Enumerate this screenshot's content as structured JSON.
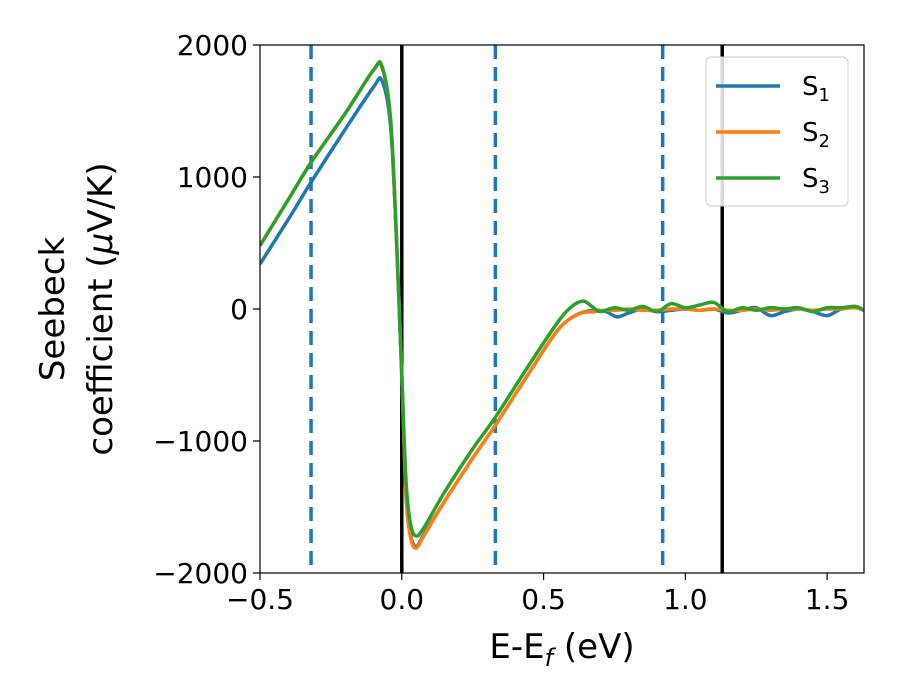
{
  "chart_data": {
    "type": "line",
    "xlabel": "E-E",
    "xlabel_sub": "f",
    "xlabel_unit": " (eV)",
    "ylabel_line1": "Seebeck",
    "ylabel_line2": "coefficient  (",
    "ylabel_mu": "μ",
    "ylabel_unit": "V/K)",
    "xlim": [
      -0.5,
      1.63
    ],
    "ylim": [
      -2000,
      2000
    ],
    "xticks": [
      -0.5,
      0.0,
      0.5,
      1.0,
      1.5
    ],
    "xtick_labels": [
      "−0.5",
      "0.0",
      "0.5",
      "1.0",
      "1.5"
    ],
    "yticks": [
      -2000,
      -1000,
      0,
      1000,
      2000
    ],
    "ytick_labels": [
      "−2000",
      "−1000",
      "0",
      "1000",
      "2000"
    ],
    "grid": false,
    "legend_position": "top-right",
    "vlines_solid": [
      0.0,
      1.13
    ],
    "vlines_dashed": [
      -0.32,
      0.33,
      0.92
    ],
    "colors": {
      "S1": "#1f77b4",
      "S2": "#ff7f0e",
      "S3": "#2ca02c",
      "solid_line": "#000000",
      "dashed_line": "#1f77b4"
    },
    "series": [
      {
        "name": "S",
        "sub": "1",
        "key": "S1",
        "x": [
          -0.5,
          -0.4,
          -0.32,
          -0.2,
          -0.1,
          -0.07,
          -0.04,
          -0.02,
          0.0,
          0.015,
          0.03,
          0.05,
          0.08,
          0.15,
          0.25,
          0.33,
          0.45,
          0.55,
          0.62,
          0.68,
          0.72,
          0.76,
          0.8,
          0.85,
          0.9,
          0.95,
          1.0,
          1.05,
          1.1,
          1.15,
          1.2,
          1.25,
          1.3,
          1.35,
          1.4,
          1.45,
          1.5,
          1.55,
          1.6,
          1.63
        ],
        "y": [
          340,
          680,
          960,
          1360,
          1680,
          1730,
          1400,
          600,
          -500,
          -1400,
          -1700,
          -1800,
          -1700,
          -1460,
          -1130,
          -880,
          -480,
          -160,
          -40,
          -10,
          -20,
          -60,
          -30,
          0,
          -20,
          -10,
          0,
          -10,
          0,
          -30,
          -10,
          10,
          -50,
          -20,
          0,
          -20,
          -50,
          0,
          10,
          -10
        ]
      },
      {
        "name": "S",
        "sub": "2",
        "key": "S2",
        "x": [
          -0.5,
          -0.4,
          -0.32,
          -0.2,
          -0.1,
          -0.07,
          -0.04,
          -0.02,
          0.0,
          0.015,
          0.03,
          0.05,
          0.08,
          0.15,
          0.25,
          0.33,
          0.45,
          0.55,
          0.62,
          0.68,
          0.72,
          0.76,
          0.8,
          0.85,
          0.9,
          0.95,
          1.0,
          1.05,
          1.1,
          1.15,
          1.2,
          1.25,
          1.3,
          1.35,
          1.4,
          1.45,
          1.5,
          1.55,
          1.6,
          1.63
        ],
        "y": [
          480,
          830,
          1110,
          1480,
          1810,
          1830,
          1450,
          600,
          -500,
          -1400,
          -1720,
          -1810,
          -1710,
          -1460,
          -1130,
          -880,
          -480,
          -160,
          -40,
          -20,
          -10,
          -10,
          0,
          -10,
          -10,
          0,
          0,
          -10,
          0,
          -10,
          -10,
          0,
          -10,
          0,
          0,
          -10,
          0,
          0,
          10,
          -10
        ]
      },
      {
        "name": "S",
        "sub": "3",
        "key": "S3",
        "x": [
          -0.5,
          -0.4,
          -0.32,
          -0.2,
          -0.1,
          -0.07,
          -0.04,
          -0.02,
          0.0,
          0.015,
          0.03,
          0.05,
          0.08,
          0.15,
          0.25,
          0.33,
          0.45,
          0.55,
          0.6,
          0.64,
          0.67,
          0.7,
          0.75,
          0.8,
          0.85,
          0.9,
          0.95,
          1.0,
          1.05,
          1.1,
          1.15,
          1.2,
          1.25,
          1.3,
          1.35,
          1.4,
          1.45,
          1.5,
          1.55,
          1.6,
          1.63
        ],
        "y": [
          480,
          830,
          1110,
          1480,
          1810,
          1840,
          1450,
          600,
          -500,
          -1300,
          -1620,
          -1720,
          -1650,
          -1390,
          -1060,
          -820,
          -420,
          -100,
          20,
          60,
          20,
          -20,
          10,
          -10,
          20,
          -20,
          40,
          10,
          30,
          50,
          -20,
          10,
          -10,
          10,
          0,
          10,
          -20,
          10,
          10,
          20,
          -10
        ]
      }
    ]
  }
}
